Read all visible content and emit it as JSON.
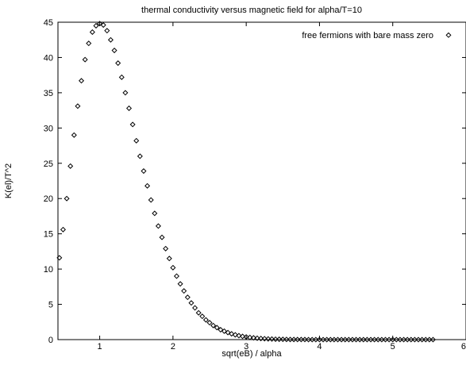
{
  "chart_data": {
    "type": "scatter",
    "title": "thermal conductivity versus magnetic field for alpha/T=10",
    "xlabel": "sqrt(eB) / alpha",
    "ylabel": "K(el)/T^2",
    "xlim": [
      0.43,
      6
    ],
    "ylim": [
      0,
      45
    ],
    "xticks": [
      1,
      2,
      3,
      4,
      5,
      6
    ],
    "yticks": [
      0,
      5,
      10,
      15,
      20,
      25,
      30,
      35,
      40,
      45
    ],
    "grid": false,
    "legend_position": "top-right",
    "series": [
      {
        "name": "free fermions with bare mass zero",
        "marker": "diamond",
        "x": [
          0.45,
          0.5,
          0.55,
          0.6,
          0.65,
          0.7,
          0.75,
          0.8,
          0.85,
          0.9,
          0.95,
          1.0,
          1.05,
          1.1,
          1.15,
          1.2,
          1.25,
          1.3,
          1.35,
          1.4,
          1.45,
          1.5,
          1.55,
          1.6,
          1.65,
          1.7,
          1.75,
          1.8,
          1.85,
          1.9,
          1.95,
          2.0,
          2.05,
          2.1,
          2.15,
          2.2,
          2.25,
          2.3,
          2.35,
          2.4,
          2.45,
          2.5,
          2.55,
          2.6,
          2.65,
          2.7,
          2.75,
          2.8,
          2.85,
          2.9,
          2.95,
          3.0,
          3.05,
          3.1,
          3.15,
          3.2,
          3.25,
          3.3,
          3.35,
          3.4,
          3.45,
          3.5,
          3.55,
          3.6,
          3.65,
          3.7,
          3.75,
          3.8,
          3.85,
          3.9,
          3.95,
          4.0,
          4.05,
          4.1,
          4.15,
          4.2,
          4.25,
          4.3,
          4.35,
          4.4,
          4.45,
          4.5,
          4.55,
          4.6,
          4.65,
          4.7,
          4.75,
          4.8,
          4.85,
          4.9,
          4.95,
          5.0,
          5.05,
          5.1,
          5.15,
          5.2,
          5.25,
          5.3,
          5.35,
          5.4,
          5.45,
          5.5,
          5.55
        ],
        "y": [
          11.6,
          15.6,
          20.0,
          24.6,
          29.0,
          33.1,
          36.7,
          39.7,
          42.0,
          43.6,
          44.5,
          44.8,
          44.6,
          43.8,
          42.5,
          41.0,
          39.2,
          37.2,
          35.0,
          32.8,
          30.5,
          28.2,
          26.0,
          23.9,
          21.8,
          19.8,
          17.9,
          16.1,
          14.5,
          12.9,
          11.5,
          10.2,
          9.0,
          7.9,
          6.9,
          6.0,
          5.2,
          4.5,
          3.8,
          3.3,
          2.8,
          2.4,
          2.0,
          1.7,
          1.4,
          1.2,
          1.0,
          0.82,
          0.68,
          0.56,
          0.46,
          0.38,
          0.31,
          0.25,
          0.2,
          0.16,
          0.13,
          0.1,
          0.08,
          0.06,
          0.05,
          0.04,
          0.03,
          0.02,
          0.02,
          0.01,
          0.01,
          0.01,
          0.0,
          0.0,
          0.0,
          0.0,
          0.0,
          0.0,
          0.0,
          0.0,
          0.0,
          0.0,
          0.0,
          0.0,
          0.0,
          0.0,
          0.0,
          0.0,
          0.0,
          0.0,
          0.0,
          0.0,
          0.0,
          0.0,
          0.0,
          0.0,
          0.0,
          0.0,
          0.0,
          0.0,
          0.0,
          0.0,
          0.0,
          0.0,
          0.0,
          0.0,
          0.0
        ]
      }
    ]
  }
}
